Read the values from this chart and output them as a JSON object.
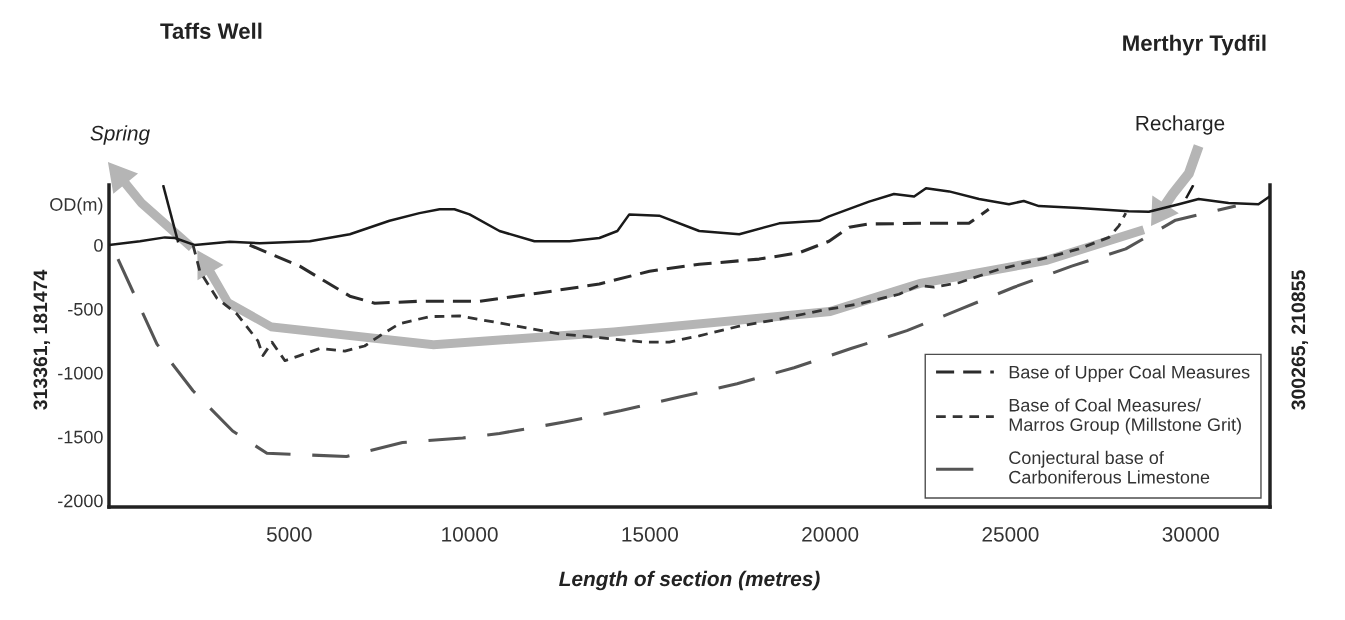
{
  "chart_data": {
    "type": "line",
    "xlabel": "Length of section (metres)",
    "xlim": [
      0,
      32200
    ],
    "xticks": [
      5000,
      10000,
      15000,
      20000,
      25000,
      30000
    ],
    "ylim": [
      -2050,
      470
    ],
    "yticks": [
      {
        "value": 320,
        "label": "OD(m)"
      },
      0,
      -500,
      -1000,
      -1500,
      -2000
    ],
    "legend": "bottom right",
    "annotations": [
      "Taffs Well",
      "Merthyr Tydfil",
      "313361, 181474",
      "300265, 210855",
      "Spring",
      "Recharge"
    ],
    "series": [
      {
        "color": "#1a1a1a",
        "line_style": "solid",
        "x": [
          0,
          860,
          1550,
          1830,
          2380,
          3350,
          4180,
          5570,
          6680,
          7780,
          8610,
          9170,
          9580,
          10000,
          10830,
          11800,
          12770,
          13600,
          14100,
          14430,
          15260,
          16370,
          17480,
          18590,
          19700,
          19970,
          21080,
          21770,
          22330,
          22660,
          23300,
          24130,
          24960,
          25370,
          25790,
          26900,
          28280,
          28840,
          29670,
          30220,
          31050,
          31880,
          32160
        ],
        "values": [
          0,
          30,
          60,
          55,
          0,
          25,
          15,
          30,
          85,
          190,
          250,
          280,
          280,
          240,
          110,
          30,
          30,
          55,
          110,
          240,
          230,
          110,
          85,
          170,
          190,
          225,
          340,
          400,
          380,
          445,
          420,
          360,
          320,
          345,
          305,
          290,
          265,
          260,
          320,
          360,
          330,
          320,
          375
        ]
      },
      {
        "color": "#1a1a1a",
        "line_style": "solid",
        "x": [
          1510,
          1910
        ],
        "values": [
          460,
          30
        ]
      },
      {
        "color": "#1a1a1a",
        "line_style": "solid",
        "x": [
          30055,
          29890
        ],
        "values": [
          460,
          375
        ]
      },
      {
        "name": "Base of Upper Coal Measures",
        "color": "#2b2b2b",
        "line_style": "dashed",
        "x": [
          3900,
          5290,
          6680,
          7370,
          8610,
          10280,
          11940,
          13600,
          14990,
          16370,
          18030,
          19140,
          19970,
          20530,
          21080,
          22470,
          23850,
          24400
        ],
        "values": [
          0,
          -165,
          -400,
          -455,
          -440,
          -440,
          -375,
          -305,
          -205,
          -150,
          -110,
          -60,
          30,
          140,
          165,
          170,
          170,
          280
        ]
      },
      {
        "name": "Base of Coal Measures/\nMarros Group (Millstone Grit)",
        "color": "#333333",
        "line_style": "dotted",
        "x": [
          2330,
          2520,
          2990,
          3550,
          4130,
          4270,
          4520,
          4880,
          5290,
          5840,
          6540,
          7090,
          7510,
          8060,
          8890,
          9720,
          10830,
          12490,
          13600,
          14850,
          15540,
          16370,
          17480,
          18590,
          19700,
          20800,
          21910,
          22470,
          22880,
          23570,
          24680,
          26070,
          26900,
          27730,
          28010,
          28200
        ],
        "values": [
          0,
          -205,
          -415,
          -540,
          -750,
          -865,
          -760,
          -905,
          -865,
          -810,
          -830,
          -790,
          -710,
          -615,
          -560,
          -555,
          -610,
          -695,
          -725,
          -760,
          -760,
          -710,
          -635,
          -580,
          -515,
          -460,
          -385,
          -315,
          -330,
          -295,
          -190,
          -95,
          -30,
          60,
          150,
          250
        ]
      },
      {
        "name": "Conjectural base of\nCarboniferous Limestone",
        "color": "#555555",
        "line_style": "dashed",
        "x": [
          250,
          1330,
          2330,
          3430,
          4380,
          6590,
          8140,
          9810,
          10830,
          12630,
          14210,
          15820,
          17420,
          19000,
          20580,
          22130,
          23630,
          25100,
          26700,
          28200,
          29580,
          31250
        ],
        "values": [
          -110,
          -775,
          -1140,
          -1455,
          -1630,
          -1655,
          -1545,
          -1510,
          -1475,
          -1385,
          -1295,
          -1190,
          -1085,
          -960,
          -810,
          -670,
          -500,
          -330,
          -165,
          -30,
          195,
          305
        ]
      }
    ]
  }
}
